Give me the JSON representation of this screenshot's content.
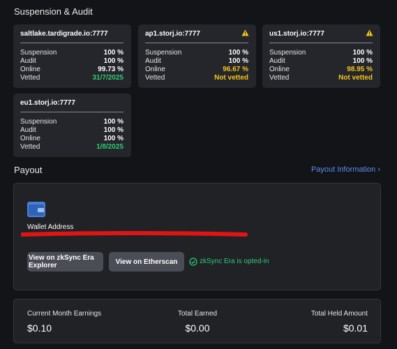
{
  "header": {
    "title": "Suspension & Audit"
  },
  "satellites": [
    {
      "name": "saltlake.tardigrade.io:7777",
      "warning": false,
      "rows": [
        {
          "label": "Suspension",
          "value": "100 %",
          "color": "#ffffff"
        },
        {
          "label": "Audit",
          "value": "100 %",
          "color": "#ffffff"
        },
        {
          "label": "Online",
          "value": "99.73 %",
          "color": "#ffffff"
        },
        {
          "label": "Vetted",
          "value": "31/7/2025",
          "color": "#2ecc71"
        }
      ]
    },
    {
      "name": "ap1.storj.io:7777",
      "warning": true,
      "rows": [
        {
          "label": "Suspension",
          "value": "100 %",
          "color": "#ffffff"
        },
        {
          "label": "Audit",
          "value": "100 %",
          "color": "#ffffff"
        },
        {
          "label": "Online",
          "value": "96.67 %",
          "color": "#f5c518"
        },
        {
          "label": "Vetted",
          "value": "Not vetted",
          "color": "#f5c518"
        }
      ]
    },
    {
      "name": "us1.storj.io:7777",
      "warning": true,
      "rows": [
        {
          "label": "Suspension",
          "value": "100 %",
          "color": "#ffffff"
        },
        {
          "label": "Audit",
          "value": "100 %",
          "color": "#ffffff"
        },
        {
          "label": "Online",
          "value": "98.95 %",
          "color": "#f5c518"
        },
        {
          "label": "Vetted",
          "value": "Not vetted",
          "color": "#f5c518"
        }
      ]
    },
    {
      "name": "eu1.storj.io:7777",
      "warning": false,
      "rows": [
        {
          "label": "Suspension",
          "value": "100 %",
          "color": "#ffffff"
        },
        {
          "label": "Audit",
          "value": "100 %",
          "color": "#ffffff"
        },
        {
          "label": "Online",
          "value": "100 %",
          "color": "#ffffff"
        },
        {
          "label": "Vetted",
          "value": "1/8/2025",
          "color": "#2ecc71"
        }
      ]
    }
  ],
  "payout": {
    "title": "Payout",
    "link": "Payout Information ›",
    "wallet_label": "Wallet Address",
    "buttons": [
      "View on zkSync Era Explorer",
      "View on Etherscan"
    ],
    "status": "zkSync Era is opted-in"
  },
  "earnings": [
    {
      "label": "Current Month Earnings",
      "value": "$0.10"
    },
    {
      "label": "Total Earned",
      "value": "$0.00"
    },
    {
      "label": "Total Held Amount",
      "value": "$0.01"
    }
  ]
}
